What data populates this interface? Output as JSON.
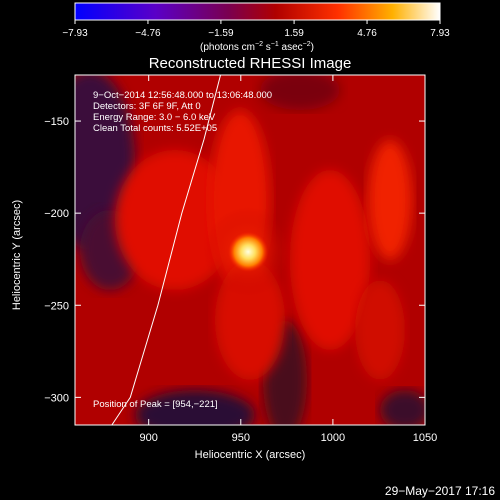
{
  "chart_data": {
    "type": "heatmap",
    "title": "Reconstructed RHESSI Image",
    "xlabel": "Heliocentric X (arcsec)",
    "ylabel": "Heliocentric Y (arcsec)",
    "xlim": [
      860,
      1050
    ],
    "ylim": [
      -315,
      -125
    ],
    "x_ticks": [
      900,
      950,
      1000,
      1050
    ],
    "x_tick_labels": [
      "900",
      "950",
      "1000",
      "1050"
    ],
    "y_ticks": [
      -150,
      -200,
      -250,
      -300
    ],
    "y_tick_labels": [
      "−150",
      "−200",
      "−250",
      "−300"
    ],
    "colorbar": {
      "range": [
        -7.93,
        7.93
      ],
      "ticks": [
        -7.93,
        -4.76,
        -1.59,
        1.59,
        4.76,
        7.93
      ],
      "tick_labels": [
        "−7.93",
        "−4.76",
        "−1.59",
        "1.59",
        "4.76",
        "7.93"
      ],
      "unit_label_pre": "(photons cm",
      "unit_sup1": "−2",
      "unit_mid": " s",
      "unit_sup2": "−1",
      "unit_mid2": " asec",
      "unit_sup3": "−2",
      "unit_post": ")"
    },
    "annotations": [
      " 9−Oct−2014 12:56:48.000 to 13:06:48.000",
      "Detectors: 3F 6F 9F, Att 0",
      "Energy Range: 3.0 − 6.0 keV",
      "Clean    Total counts: 5.52E+05"
    ],
    "peak_label": "Position of Peak = [954,−221]",
    "peak": {
      "x": 954,
      "y": -221
    },
    "limb_curve": [
      [
        939,
        -125
      ],
      [
        930,
        -160
      ],
      [
        918,
        -200
      ],
      [
        905,
        -250
      ],
      [
        890,
        -300
      ],
      [
        880,
        -315
      ]
    ]
  },
  "footer_date": "29−May−2017 17:16"
}
